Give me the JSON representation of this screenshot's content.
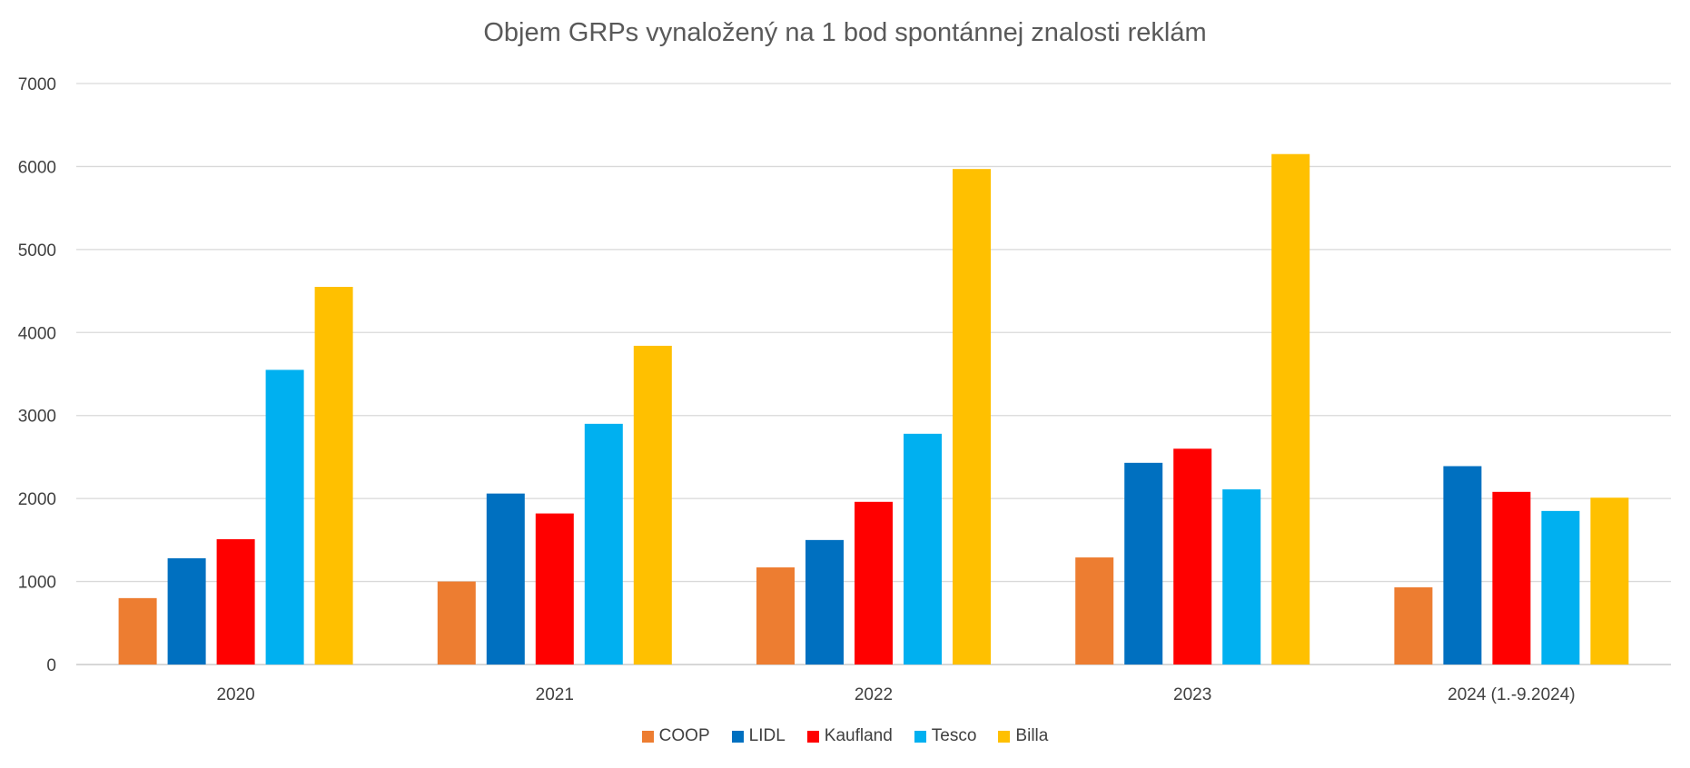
{
  "chart_data": {
    "type": "bar",
    "title": "Objem GRPs vynaložený na 1 bod spontánnej znalosti reklám",
    "xlabel": "",
    "ylabel": "",
    "ylim": [
      0,
      7000
    ],
    "yticks": [
      0,
      1000,
      2000,
      3000,
      4000,
      5000,
      6000,
      7000
    ],
    "grid": true,
    "legend_position": "bottom",
    "categories": [
      "2020",
      "2021",
      "2022",
      "2023",
      "2024 (1.-9.2024)"
    ],
    "series": [
      {
        "name": "COOP",
        "color": "#ED7D31",
        "values": [
          800,
          1000,
          1170,
          1290,
          930
        ]
      },
      {
        "name": "LIDL",
        "color": "#0070C0",
        "values": [
          1280,
          2060,
          1500,
          2430,
          2390
        ]
      },
      {
        "name": "Kaufland",
        "color": "#FF0000",
        "values": [
          1510,
          1820,
          1960,
          2600,
          2080
        ]
      },
      {
        "name": "Tesco",
        "color": "#00B0F0",
        "values": [
          3550,
          2900,
          2780,
          2110,
          1850
        ]
      },
      {
        "name": "Billa",
        "color": "#FFC000",
        "values": [
          4550,
          3840,
          5970,
          6150,
          2010
        ]
      }
    ]
  }
}
